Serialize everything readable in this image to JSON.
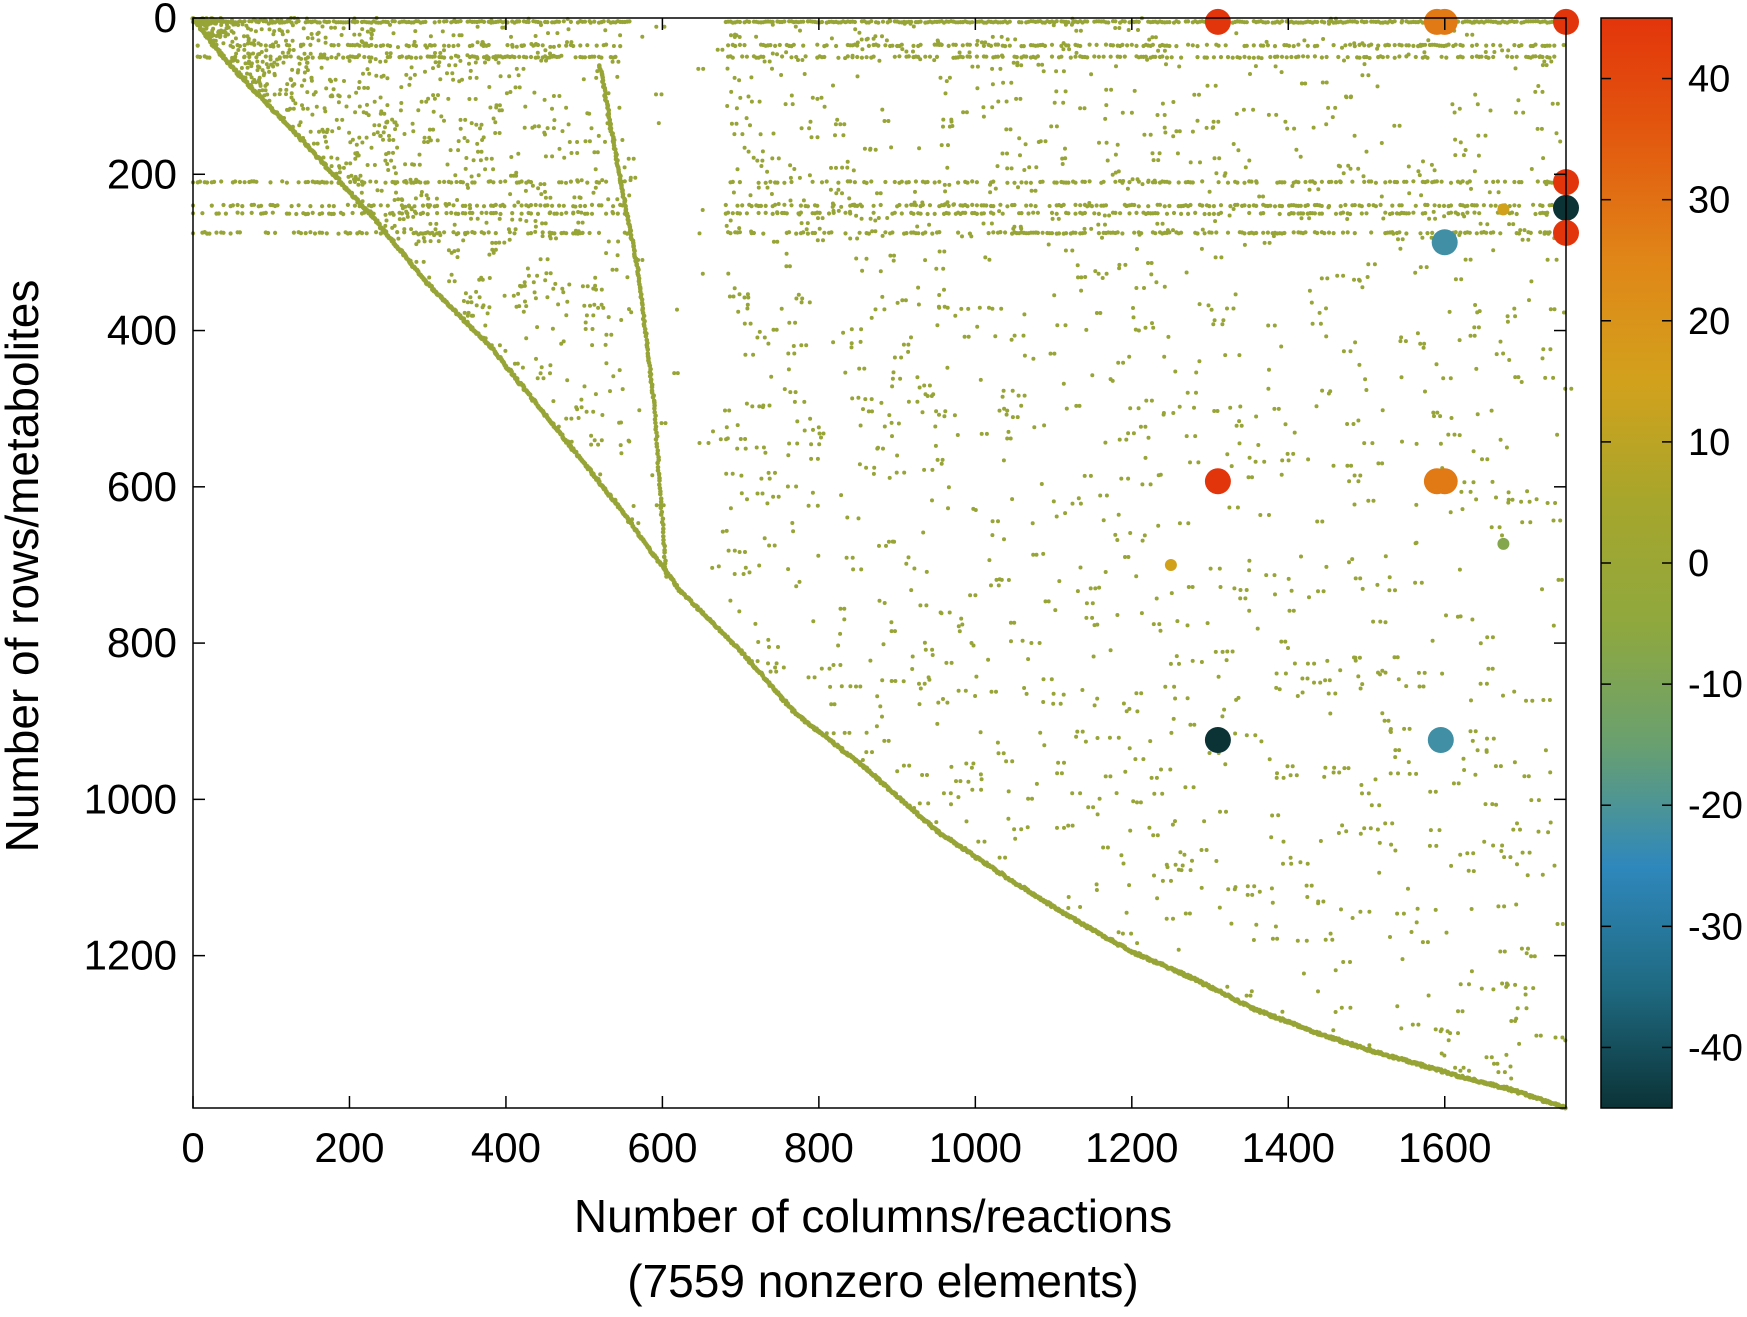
{
  "chart_data": {
    "type": "scatter",
    "title": "",
    "xlabel": "Number of columns/reactions",
    "xlabel_note": "(7559 nonzero elements)",
    "ylabel": "Number of rows/metabolites",
    "xlim": [
      0,
      1755
    ],
    "ylim": [
      1395,
      0
    ],
    "y_inverted": true,
    "x_ticks": [
      0,
      200,
      400,
      600,
      800,
      1000,
      1200,
      1400,
      1600
    ],
    "y_ticks": [
      0,
      200,
      400,
      600,
      800,
      1000,
      1200
    ],
    "colorbar": {
      "range": [
        -45,
        45
      ],
      "ticks": [
        40,
        30,
        20,
        10,
        0,
        -10,
        -20,
        -30,
        -40
      ],
      "palette": [
        "#0b3336",
        "#1f6a82",
        "#2f88bc",
        "#69a070",
        "#8fa83e",
        "#a6a62c",
        "#d2a11c",
        "#e08618",
        "#e25a0f",
        "#e3350b"
      ]
    },
    "sparsity_pattern": {
      "description_visible": "",
      "nonzero_count": 7559,
      "diagonal_path": [
        [
          0,
          0
        ],
        [
          30,
          40
        ],
        [
          70,
          85
        ],
        [
          115,
          130
        ],
        [
          170,
          190
        ],
        [
          230,
          255
        ],
        [
          300,
          340
        ],
        [
          380,
          420
        ],
        [
          460,
          520
        ],
        [
          540,
          620
        ],
        [
          620,
          730
        ],
        [
          700,
          810
        ],
        [
          770,
          890
        ],
        [
          860,
          960
        ],
        [
          950,
          1040
        ],
        [
          1040,
          1100
        ],
        [
          1120,
          1150
        ],
        [
          1200,
          1195
        ],
        [
          1280,
          1230
        ],
        [
          1360,
          1270
        ],
        [
          1440,
          1300
        ],
        [
          1500,
          1320
        ],
        [
          1570,
          1340
        ],
        [
          1620,
          1355
        ],
        [
          1680,
          1370
        ],
        [
          1755,
          1395
        ]
      ],
      "secondary_band": [
        [
          520,
          60
        ],
        [
          545,
          200
        ],
        [
          570,
          330
        ],
        [
          590,
          500
        ],
        [
          605,
          720
        ]
      ],
      "dense_rows": [
        5,
        35,
        50,
        210,
        240,
        250,
        275
      ],
      "small_value_color": "#97a436"
    },
    "large_entries": [
      {
        "x": 1310,
        "y": 5,
        "value": 45
      },
      {
        "x": 1590,
        "y": 5,
        "value": 28
      },
      {
        "x": 1600,
        "y": 5,
        "value": 28
      },
      {
        "x": 1755,
        "y": 5,
        "value": 45
      },
      {
        "x": 1755,
        "y": 210,
        "value": 45
      },
      {
        "x": 1755,
        "y": 243,
        "value": -45
      },
      {
        "x": 1755,
        "y": 275,
        "value": 45
      },
      {
        "x": 1600,
        "y": 287,
        "value": -22
      },
      {
        "x": 1310,
        "y": 593,
        "value": 45
      },
      {
        "x": 1590,
        "y": 593,
        "value": 28
      },
      {
        "x": 1600,
        "y": 593,
        "value": 28
      },
      {
        "x": 1310,
        "y": 924,
        "value": -45
      },
      {
        "x": 1595,
        "y": 924,
        "value": -22
      },
      {
        "x": 1675,
        "y": 673,
        "value": -8
      },
      {
        "x": 1250,
        "y": 700,
        "value": 15
      },
      {
        "x": 1675,
        "y": 245,
        "value": 15
      }
    ]
  }
}
